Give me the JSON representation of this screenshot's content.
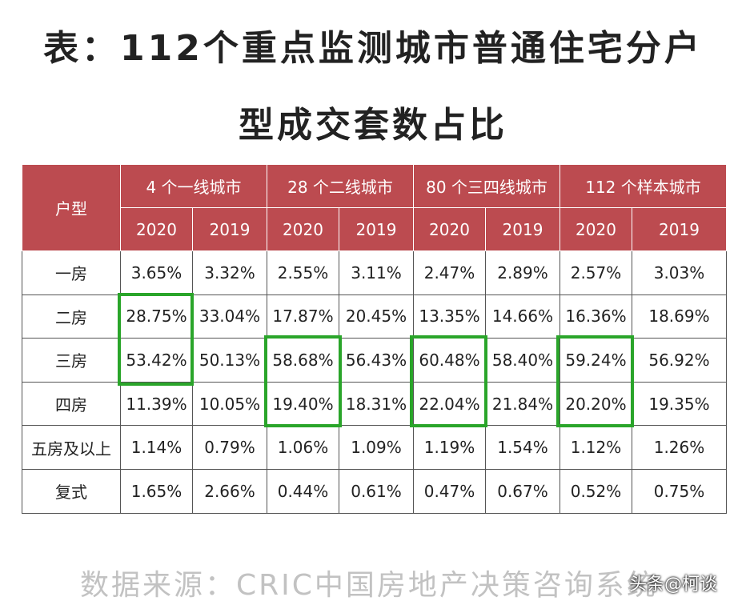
{
  "title": {
    "line1": "表：112个重点监测城市普通住宅分户",
    "line2": "型成交套数占比"
  },
  "table": {
    "corner_header": "户型",
    "groups": [
      "4 个一线城市",
      "28 个二线城市",
      "80 个三四线城市",
      "112 个样本城市"
    ],
    "years": [
      "2020",
      "2019",
      "2020",
      "2019",
      "2020",
      "2019",
      "2020",
      "2019"
    ],
    "rows": [
      {
        "label": "一房",
        "values": [
          "3.65%",
          "3.32%",
          "2.55%",
          "3.11%",
          "2.47%",
          "2.89%",
          "2.57%",
          "3.03%"
        ]
      },
      {
        "label": "二房",
        "values": [
          "28.75%",
          "33.04%",
          "17.87%",
          "20.45%",
          "13.35%",
          "14.66%",
          "16.36%",
          "18.69%"
        ]
      },
      {
        "label": "三房",
        "values": [
          "53.42%",
          "50.13%",
          "58.68%",
          "56.43%",
          "60.48%",
          "58.40%",
          "59.24%",
          "56.92%"
        ]
      },
      {
        "label": "四房",
        "values": [
          "11.39%",
          "10.05%",
          "19.40%",
          "18.31%",
          "22.04%",
          "21.84%",
          "20.20%",
          "19.35%"
        ]
      },
      {
        "label": "五房及以上",
        "values": [
          "1.14%",
          "0.79%",
          "1.06%",
          "1.09%",
          "1.19%",
          "1.54%",
          "1.12%",
          "1.26%"
        ]
      },
      {
        "label": "复式",
        "values": [
          "1.65%",
          "2.66%",
          "0.44%",
          "0.61%",
          "0.47%",
          "0.67%",
          "0.52%",
          "0.75%"
        ]
      }
    ],
    "header_color": "#bc4b50",
    "highlight_color": "#2aa52a"
  },
  "source": "数据来源：CRIC中国房地产决策咨询系统",
  "watermark": "头条@柯谈"
}
